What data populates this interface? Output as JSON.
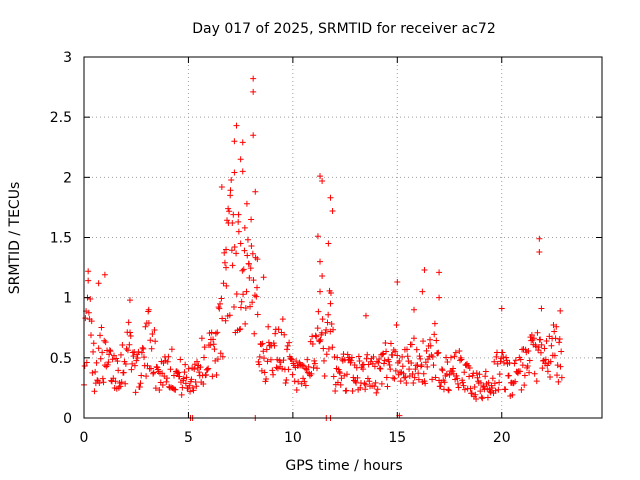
{
  "chart_data": {
    "type": "scatter",
    "title": "Day 017 of 2025, SRMTID for receiver ac72",
    "xlabel": "GPS time / hours",
    "ylabel": "SRMTID / TECUs",
    "xlim": [
      0,
      24.8
    ],
    "ylim": [
      0,
      3
    ],
    "xticks": [
      0,
      5,
      10,
      15,
      20
    ],
    "xtick_labels": [
      "0",
      "5",
      "10",
      "15",
      "20"
    ],
    "yticks": [
      0,
      0.5,
      1,
      1.5,
      2,
      2.5,
      3
    ],
    "ytick_labels": [
      "0",
      "0.5",
      "1",
      "1.5",
      "2",
      "2.5",
      "3"
    ],
    "grid": true,
    "marker": "+",
    "series": [
      {
        "name": "SRMTID",
        "color": "#ff0000",
        "x_start": 0.0,
        "x_step": 0.0167,
        "values_desc": "one point per minute, 0 to ~22.9 h; values sampled below",
        "anchor_x": [
          0,
          0.2,
          0.5,
          0.8,
          1.0,
          1.5,
          2.0,
          2.2,
          2.5,
          3.0,
          3.2,
          3.5,
          4.0,
          4.5,
          5.0,
          5.5,
          6.0,
          6.5,
          6.8,
          7.0,
          7.2,
          7.5,
          7.8,
          8.0,
          8.3,
          8.6,
          9.0,
          9.5,
          10.0,
          10.5,
          11.0,
          11.3,
          11.6,
          11.8,
          12.0,
          12.5,
          13.0,
          13.5,
          14.0,
          14.5,
          15.0,
          15.5,
          16.0,
          16.5,
          16.8,
          17.0,
          17.5,
          18.0,
          18.5,
          19.0,
          19.5,
          20.0,
          20.5,
          21.0,
          21.5,
          21.8,
          22.0,
          22.5,
          22.9
        ],
        "anchor_y": [
          0.5,
          0.9,
          0.4,
          0.55,
          0.45,
          0.4,
          0.5,
          0.7,
          0.35,
          0.55,
          0.75,
          0.35,
          0.45,
          0.35,
          0.3,
          0.45,
          0.5,
          0.7,
          1.1,
          1.5,
          1.3,
          1.1,
          1.2,
          1.0,
          0.9,
          0.5,
          0.55,
          0.6,
          0.35,
          0.3,
          0.5,
          0.8,
          0.5,
          0.9,
          0.35,
          0.4,
          0.35,
          0.4,
          0.35,
          0.45,
          0.55,
          0.4,
          0.5,
          0.45,
          0.55,
          0.4,
          0.35,
          0.4,
          0.3,
          0.25,
          0.3,
          0.45,
          0.3,
          0.4,
          0.5,
          0.5,
          0.45,
          0.55,
          0.5
        ],
        "outliers": [
          [
            8.1,
            2.82
          ],
          [
            8.1,
            2.71
          ],
          [
            7.3,
            2.43
          ],
          [
            8.1,
            2.35
          ],
          [
            7.2,
            2.3
          ],
          [
            7.6,
            2.29
          ],
          [
            7.5,
            2.15
          ],
          [
            7.2,
            2.04
          ],
          [
            7.6,
            2.05
          ],
          [
            11.3,
            2.01
          ],
          [
            11.4,
            1.97
          ],
          [
            6.6,
            1.92
          ],
          [
            8.2,
            1.88
          ],
          [
            7.0,
            1.85
          ],
          [
            11.8,
            1.83
          ],
          [
            7.8,
            1.78
          ],
          [
            6.9,
            1.74
          ],
          [
            11.9,
            1.72
          ],
          [
            7.4,
            1.69
          ],
          [
            8.0,
            1.65
          ],
          [
            7.1,
            1.62
          ],
          [
            7.7,
            1.58
          ],
          [
            11.2,
            1.51
          ],
          [
            21.8,
            1.49
          ],
          [
            11.7,
            1.45
          ],
          [
            7.5,
            1.45
          ],
          [
            6.8,
            1.4
          ],
          [
            21.8,
            1.38
          ],
          [
            8.3,
            1.32
          ],
          [
            11.3,
            1.3
          ],
          [
            7.9,
            1.28
          ],
          [
            6.8,
            1.25
          ],
          [
            16.3,
            1.23
          ],
          [
            17.0,
            1.21
          ],
          [
            0.2,
            1.22
          ],
          [
            1.0,
            1.19
          ],
          [
            11.4,
            1.18
          ],
          [
            8.6,
            1.17
          ],
          [
            15.0,
            1.13
          ],
          [
            0.7,
            1.12
          ],
          [
            11.3,
            1.05
          ],
          [
            16.2,
            1.05
          ],
          [
            17.0,
            1.0
          ],
          [
            2.2,
            0.98
          ],
          [
            11.8,
            0.95
          ],
          [
            21.9,
            0.91
          ],
          [
            20.0,
            0.91
          ],
          [
            15.8,
            0.9
          ],
          [
            3.1,
            0.9
          ],
          [
            22.8,
            0.89
          ],
          [
            13.5,
            0.85
          ],
          [
            8.2,
            0.0
          ],
          [
            5.1,
            0.0
          ],
          [
            5.2,
            0.0
          ],
          [
            11.6,
            0.0
          ],
          [
            11.8,
            0.0
          ],
          [
            15.1,
            0.02
          ]
        ]
      }
    ]
  }
}
